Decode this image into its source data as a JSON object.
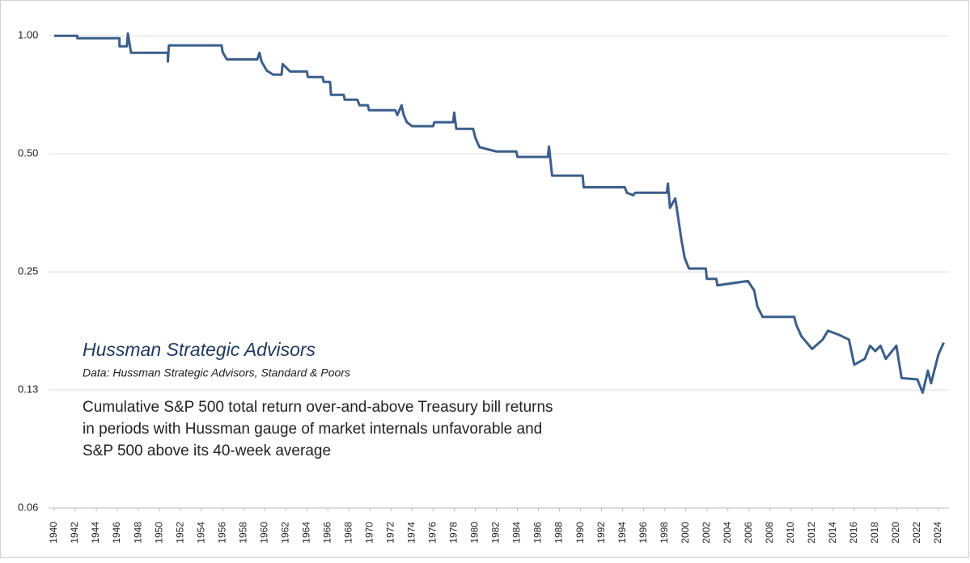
{
  "chart_data": {
    "type": "line",
    "title": "Hussman Strategic Advisors",
    "subtitle": "Data: Hussman Strategic Advisors, Standard & Poors",
    "annotation": [
      "Cumulative S&P 500 total return over-and-above Treasury bill returns",
      "in periods with  Hussman gauge of market internals unfavorable and",
      "S&P 500 above its 40-week average"
    ],
    "x": [
      1940,
      1942.2,
      1942.2,
      1946.2,
      1946.2,
      1946.9,
      1947.0,
      1947.2,
      1947.3,
      1950.8,
      1950.8,
      1950.9,
      1955.9,
      1956.0,
      1956.4,
      1959.3,
      1959.5,
      1959.7,
      1960.2,
      1960.8,
      1961.6,
      1961.7,
      1962.4,
      1964.0,
      1964.1,
      1965.5,
      1965.6,
      1966.2,
      1966.3,
      1967.5,
      1967.6,
      1968.8,
      1969.0,
      1969.8,
      1969.9,
      1972.4,
      1972.6,
      1973.0,
      1973.2,
      1973.5,
      1974.0,
      1976.0,
      1976.1,
      1977.9,
      1978.0,
      1978.2,
      1979.8,
      1980.0,
      1980.4,
      1982.0,
      1983.9,
      1984.0,
      1986.9,
      1987.0,
      1987.3,
      1990.2,
      1990.3,
      1994.2,
      1994.4,
      1995.0,
      1995.2,
      1998.2,
      1998.3,
      1998.5,
      1999.0,
      1999.3,
      1999.6,
      1999.9,
      2000.3,
      2001.9,
      2002.0,
      2002.9,
      2003.0,
      2005.9,
      2006.5,
      2006.8,
      2007.3,
      2010.3,
      2010.5,
      2011.0,
      2012.0,
      2013.0,
      2013.5,
      2014.5,
      2015.5,
      2016.0,
      2017.0,
      2017.5,
      2018.0,
      2018.5,
      2019.0,
      2020.0,
      2020.5,
      2022.0,
      2022.5,
      2023.0,
      2023.3,
      2024.0,
      2024.5
    ],
    "series": [
      {
        "color": "#3b5e8c",
        "values": [
          1.0,
          1.0,
          0.986,
          0.986,
          0.94,
          0.94,
          1.014,
          0.94,
          0.905,
          0.905,
          0.86,
          0.945,
          0.945,
          0.909,
          0.871,
          0.871,
          0.905,
          0.859,
          0.815,
          0.796,
          0.796,
          0.847,
          0.811,
          0.811,
          0.785,
          0.785,
          0.763,
          0.763,
          0.707,
          0.707,
          0.687,
          0.687,
          0.665,
          0.665,
          0.646,
          0.646,
          0.628,
          0.665,
          0.628,
          0.602,
          0.588,
          0.588,
          0.602,
          0.602,
          0.637,
          0.579,
          0.579,
          0.55,
          0.52,
          0.507,
          0.507,
          0.491,
          0.491,
          0.522,
          0.44,
          0.44,
          0.411,
          0.411,
          0.398,
          0.392,
          0.398,
          0.398,
          0.42,
          0.364,
          0.385,
          0.34,
          0.3,
          0.271,
          0.255,
          0.255,
          0.24,
          0.24,
          0.231,
          0.237,
          0.224,
          0.204,
          0.192,
          0.192,
          0.183,
          0.171,
          0.159,
          0.168,
          0.177,
          0.173,
          0.168,
          0.145,
          0.15,
          0.162,
          0.157,
          0.162,
          0.15,
          0.162,
          0.134,
          0.133,
          0.123,
          0.14,
          0.13,
          0.154,
          0.165
        ]
      }
    ],
    "xlim": [
      1940,
      2025
    ],
    "xticks": [
      1940,
      1942,
      1944,
      1946,
      1948,
      1950,
      1952,
      1954,
      1956,
      1958,
      1960,
      1962,
      1964,
      1966,
      1968,
      1970,
      1972,
      1974,
      1976,
      1978,
      1980,
      1982,
      1984,
      1986,
      1988,
      1990,
      1992,
      1994,
      1996,
      1998,
      2000,
      2002,
      2004,
      2006,
      2008,
      2010,
      2012,
      2014,
      2016,
      2018,
      2020,
      2022,
      2024
    ],
    "ylim": [
      0.0625,
      1.07
    ],
    "yticks": [
      {
        "value": 0.0625,
        "label": "0.06"
      },
      {
        "value": 0.125,
        "label": "0.13"
      },
      0.25,
      {
        "value": 0.5,
        "label": "0.50"
      },
      {
        "value": 1,
        "label": "1.00"
      }
    ],
    "ylog": true,
    "grid": true
  }
}
